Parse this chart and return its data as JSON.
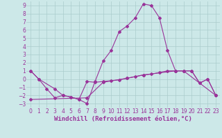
{
  "xlabel": "Windchill (Refroidissement éolien,°C)",
  "background_color": "#cce8e8",
  "grid_color": "#aacccc",
  "line_color": "#993399",
  "xlim": [
    -0.5,
    23.5
  ],
  "ylim": [
    -3.5,
    9.5
  ],
  "xticks": [
    0,
    1,
    2,
    3,
    4,
    5,
    6,
    7,
    8,
    9,
    10,
    11,
    12,
    13,
    14,
    15,
    16,
    17,
    18,
    19,
    20,
    21,
    22,
    23
  ],
  "yticks": [
    -3,
    -2,
    -1,
    0,
    1,
    2,
    3,
    4,
    5,
    6,
    7,
    8,
    9
  ],
  "curve1_x": [
    0,
    1,
    2,
    3,
    4,
    5,
    6,
    7,
    8,
    9,
    10,
    11,
    12,
    13,
    14,
    15,
    16,
    17,
    18,
    19,
    20,
    21,
    22,
    23
  ],
  "curve1_y": [
    1.0,
    0.0,
    -1.2,
    -2.3,
    -2.0,
    -2.2,
    -2.5,
    -3.0,
    -0.3,
    2.2,
    3.5,
    5.8,
    6.5,
    7.5,
    9.2,
    9.0,
    7.5,
    3.5,
    1.0,
    1.0,
    1.0,
    -0.5,
    0.0,
    -2.0
  ],
  "curve2_x": [
    0,
    1,
    3,
    4,
    5,
    6,
    7,
    8,
    9,
    10,
    11,
    12,
    13,
    14,
    15,
    16,
    17,
    18,
    19,
    20,
    21,
    22,
    23
  ],
  "curve2_y": [
    1.0,
    0.0,
    -1.2,
    -2.0,
    -2.2,
    -2.5,
    -0.3,
    -0.4,
    -0.3,
    -0.2,
    -0.1,
    0.1,
    0.3,
    0.5,
    0.6,
    0.8,
    1.0,
    1.0,
    1.0,
    1.0,
    -0.5,
    0.0,
    -2.0
  ],
  "curve3_x": [
    0,
    7,
    9,
    12,
    14,
    18,
    19,
    23
  ],
  "curve3_y": [
    -2.5,
    -2.3,
    -0.4,
    0.1,
    0.5,
    1.0,
    1.0,
    -2.0
  ],
  "font_color": "#993399",
  "tick_fontsize": 5.5,
  "label_fontsize": 6.5
}
